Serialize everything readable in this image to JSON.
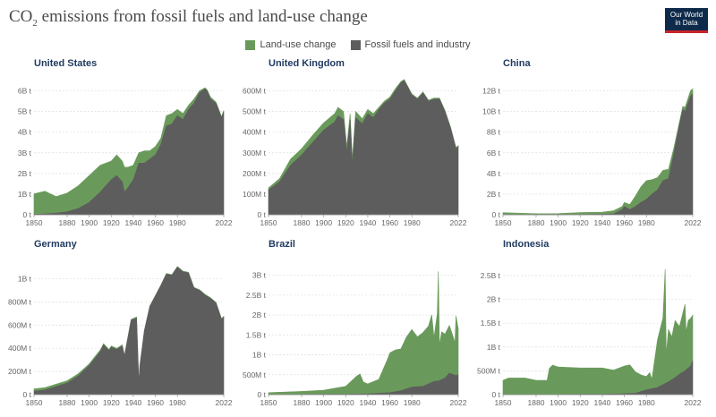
{
  "header": {
    "title_prefix": "CO",
    "title_sub": "2",
    "title_rest": " emissions from fossil fuels and land-use change",
    "logo_line1": "Our World",
    "logo_line2": "in Data"
  },
  "legend": [
    {
      "label": "Land-use change",
      "color": "#6a9a5b"
    },
    {
      "label": "Fossil fuels and industry",
      "color": "#5d5d5d"
    }
  ],
  "colors": {
    "land_use": "#6a9a5b",
    "fossil": "#5d5d5d",
    "title": "#1f3a5f",
    "logo_bg": "#0e2a4a",
    "logo_accent": "#c8242b"
  },
  "chart_data": [
    {
      "type": "area",
      "title": "United States",
      "ylim": [
        0,
        6.5
      ],
      "yticks": [
        0,
        1,
        2,
        3,
        4,
        5,
        6
      ],
      "yticklabels": [
        "0 t",
        "1B t",
        "2B t",
        "3B t",
        "4B t",
        "5B t",
        "6B t"
      ],
      "xlim": [
        1850,
        2022
      ],
      "xticks": [
        1850,
        1880,
        1900,
        1920,
        1940,
        1960,
        1980,
        2022
      ],
      "series": [
        {
          "name": "Fossil fuels and industry",
          "x": [
            1850,
            1860,
            1870,
            1880,
            1890,
            1900,
            1910,
            1920,
            1925,
            1930,
            1932,
            1935,
            1940,
            1945,
            1950,
            1955,
            1960,
            1965,
            1970,
            1975,
            1980,
            1985,
            1990,
            1995,
            2000,
            2005,
            2007,
            2010,
            2015,
            2020,
            2022
          ],
          "values": [
            0.02,
            0.04,
            0.08,
            0.15,
            0.3,
            0.6,
            1.1,
            1.7,
            1.9,
            1.6,
            1.1,
            1.3,
            1.7,
            2.5,
            2.5,
            2.7,
            2.9,
            3.4,
            4.3,
            4.4,
            4.8,
            4.6,
            5.1,
            5.4,
            5.9,
            6.1,
            6.0,
            5.6,
            5.4,
            4.7,
            5.0
          ]
        },
        {
          "name": "Land-use change",
          "x": [
            1850,
            1860,
            1870,
            1880,
            1890,
            1900,
            1910,
            1920,
            1925,
            1930,
            1932,
            1935,
            1940,
            1945,
            1950,
            1955,
            1960,
            1965,
            1970,
            1975,
            1980,
            1985,
            1990,
            1995,
            2000,
            2005,
            2007,
            2010,
            2015,
            2020,
            2022
          ],
          "values": [
            1.0,
            1.1,
            0.8,
            0.9,
            1.1,
            1.3,
            1.3,
            0.9,
            1.0,
            1.0,
            1.2,
            1.0,
            0.7,
            0.5,
            0.6,
            0.4,
            0.4,
            0.3,
            0.5,
            0.5,
            0.3,
            0.3,
            0.2,
            0.2,
            0.1,
            0.05,
            0.05,
            0.1,
            0.05,
            0.05,
            0.05
          ]
        }
      ]
    },
    {
      "type": "area",
      "title": "United Kingdom",
      "ylim": [
        0,
        650
      ],
      "yticks": [
        0,
        100,
        200,
        300,
        400,
        500,
        600
      ],
      "yticklabels": [
        "0 t",
        "100M t",
        "200M t",
        "300M t",
        "400M t",
        "500M t",
        "600M t"
      ],
      "xlim": [
        1850,
        2022
      ],
      "xticks": [
        1850,
        1880,
        1900,
        1920,
        1940,
        1960,
        1980,
        2022
      ],
      "series": [
        {
          "name": "Fossil fuels and industry",
          "x": [
            1850,
            1860,
            1870,
            1880,
            1890,
            1900,
            1910,
            1913,
            1918,
            1921,
            1924,
            1926,
            1929,
            1935,
            1940,
            1945,
            1950,
            1955,
            1960,
            1965,
            1970,
            1973,
            1980,
            1985,
            1990,
            1995,
            2000,
            2005,
            2010,
            2015,
            2020,
            2022
          ],
          "values": [
            120,
            160,
            240,
            290,
            350,
            410,
            450,
            480,
            460,
            300,
            460,
            240,
            470,
            440,
            490,
            470,
            510,
            540,
            560,
            600,
            640,
            650,
            580,
            560,
            590,
            550,
            560,
            560,
            500,
            420,
            320,
            330
          ]
        },
        {
          "name": "Land-use change",
          "x": [
            1850,
            1860,
            1870,
            1880,
            1890,
            1900,
            1910,
            1913,
            1918,
            1921,
            1924,
            1926,
            1929,
            1935,
            1940,
            1945,
            1950,
            1955,
            1960,
            1965,
            1970,
            1973,
            1980,
            1985,
            1990,
            1995,
            2000,
            2005,
            2010,
            2015,
            2020,
            2022
          ],
          "values": [
            10,
            15,
            30,
            30,
            35,
            35,
            40,
            40,
            40,
            30,
            30,
            30,
            30,
            25,
            20,
            20,
            10,
            10,
            10,
            10,
            5,
            5,
            5,
            5,
            5,
            5,
            5,
            5,
            5,
            5,
            5,
            5
          ]
        }
      ]
    },
    {
      "type": "area",
      "title": "China",
      "ylim": [
        0,
        13
      ],
      "yticks": [
        0,
        2,
        4,
        6,
        8,
        10,
        12
      ],
      "yticklabels": [
        "0 t",
        "2B t",
        "4B t",
        "6B t",
        "8B t",
        "10B t",
        "12B t"
      ],
      "xlim": [
        1850,
        2022
      ],
      "xticks": [
        1850,
        1880,
        1900,
        1920,
        1940,
        1960,
        1980,
        2022
      ],
      "series": [
        {
          "name": "Fossil fuels and industry",
          "x": [
            1850,
            1880,
            1900,
            1920,
            1940,
            1950,
            1958,
            1960,
            1965,
            1970,
            1975,
            1980,
            1985,
            1990,
            1995,
            2000,
            2005,
            2010,
            2013,
            2015,
            2020,
            2022
          ],
          "values": [
            0,
            0,
            0.01,
            0.02,
            0.05,
            0.08,
            0.5,
            0.8,
            0.5,
            0.8,
            1.2,
            1.5,
            2.0,
            2.4,
            3.3,
            3.5,
            6.0,
            8.8,
            10.2,
            10.0,
            11.5,
            11.7
          ]
        },
        {
          "name": "Land-use change",
          "x": [
            1850,
            1880,
            1900,
            1920,
            1940,
            1950,
            1958,
            1960,
            1965,
            1970,
            1975,
            1980,
            1985,
            1990,
            1995,
            2000,
            2005,
            2010,
            2013,
            2015,
            2020,
            2022
          ],
          "values": [
            0.2,
            0.1,
            0.1,
            0.2,
            0.2,
            0.3,
            0.3,
            0.4,
            0.5,
            1.0,
            1.5,
            1.8,
            1.4,
            1.2,
            1.0,
            0.9,
            0.5,
            0.2,
            0.3,
            0.4,
            0.5,
            0.5
          ]
        }
      ]
    },
    {
      "type": "area",
      "title": "Germany",
      "ylim": [
        0,
        1150
      ],
      "yticks": [
        0,
        200,
        400,
        600,
        800,
        1000
      ],
      "yticklabels": [
        "0 t",
        "200M t",
        "400M t",
        "600M t",
        "800M t",
        "1B t"
      ],
      "xlim": [
        1850,
        2022
      ],
      "xticks": [
        1850,
        1880,
        1900,
        1920,
        1940,
        1960,
        1980,
        2022
      ],
      "series": [
        {
          "name": "Fossil fuels and industry",
          "x": [
            1850,
            1860,
            1870,
            1880,
            1890,
            1900,
            1910,
            1913,
            1918,
            1920,
            1925,
            1930,
            1932,
            1938,
            1943,
            1945,
            1946,
            1950,
            1955,
            1960,
            1965,
            1970,
            1975,
            1980,
            1985,
            1990,
            1995,
            2000,
            2005,
            2010,
            2015,
            2020,
            2022
          ],
          "values": [
            30,
            40,
            70,
            100,
            160,
            250,
            370,
            430,
            380,
            410,
            390,
            420,
            330,
            640,
            660,
            100,
            250,
            550,
            760,
            850,
            940,
            1040,
            1030,
            1100,
            1060,
            1050,
            920,
            900,
            860,
            830,
            790,
            650,
            670
          ]
        },
        {
          "name": "Land-use change",
          "x": [
            1850,
            1860,
            1870,
            1880,
            1890,
            1900,
            1910,
            1913,
            1918,
            1920,
            1925,
            1930,
            1932,
            1938,
            1943,
            1945,
            1946,
            1950,
            1955,
            1960,
            1965,
            1970,
            1975,
            1980,
            1985,
            1990,
            1995,
            2000,
            2005,
            2010,
            2015,
            2020,
            2022
          ],
          "values": [
            20,
            20,
            20,
            20,
            20,
            15,
            15,
            10,
            10,
            10,
            10,
            10,
            10,
            10,
            10,
            5,
            5,
            5,
            5,
            5,
            5,
            5,
            5,
            5,
            5,
            5,
            5,
            5,
            5,
            5,
            5,
            5,
            5
          ]
        }
      ]
    },
    {
      "type": "area",
      "title": "Brazil",
      "ylim": [
        0,
        3.35
      ],
      "yticks": [
        0,
        0.5,
        1,
        1.5,
        2,
        2.5,
        3
      ],
      "yticklabels": [
        "0 t",
        "500M t",
        "1B t",
        "1.5B t",
        "2B t",
        "2.5B t",
        "3B t"
      ],
      "xlim": [
        1850,
        2022
      ],
      "xticks": [
        1850,
        1880,
        1900,
        1920,
        1940,
        1960,
        1980,
        2022
      ],
      "series": [
        {
          "name": "Fossil fuels and industry",
          "x": [
            1850,
            1880,
            1900,
            1920,
            1940,
            1960,
            1970,
            1980,
            1990,
            2000,
            2005,
            2010,
            2014,
            2015,
            2020,
            2022
          ],
          "values": [
            0,
            0,
            0.01,
            0.01,
            0.02,
            0.05,
            0.1,
            0.19,
            0.21,
            0.33,
            0.35,
            0.42,
            0.54,
            0.53,
            0.48,
            0.5
          ]
        },
        {
          "name": "Land-use change",
          "x": [
            1850,
            1880,
            1900,
            1920,
            1930,
            1933,
            1936,
            1940,
            1950,
            1958,
            1960,
            1965,
            1970,
            1975,
            1980,
            1985,
            1990,
            1995,
            1998,
            2000,
            2003,
            2004,
            2005,
            2007,
            2010,
            2014,
            2018,
            2019,
            2020,
            2022
          ],
          "values": [
            0.05,
            0.08,
            0.1,
            0.2,
            0.45,
            0.5,
            0.3,
            0.25,
            0.35,
            0.85,
            1.0,
            1.05,
            1.05,
            1.3,
            1.45,
            1.25,
            1.35,
            1.45,
            1.7,
            1.1,
            1.7,
            2.75,
            0.9,
            1.2,
            1.1,
            1.2,
            0.9,
            0.8,
            1.5,
            1.15
          ]
        }
      ]
    },
    {
      "type": "area",
      "title": "Indonesia",
      "ylim": [
        0,
        2.8
      ],
      "yticks": [
        0,
        0.5,
        1,
        1.5,
        2,
        2.5
      ],
      "yticklabels": [
        "0 t",
        "500M t",
        "1B t",
        "1.5B t",
        "2B t",
        "2.5B t"
      ],
      "xlim": [
        1850,
        2022
      ],
      "xticks": [
        1850,
        1880,
        1900,
        1920,
        1940,
        1960,
        1980,
        2022
      ],
      "series": [
        {
          "name": "Fossil fuels and industry",
          "x": [
            1850,
            1880,
            1900,
            1920,
            1940,
            1960,
            1970,
            1980,
            1990,
            2000,
            2005,
            2010,
            2015,
            2020,
            2022
          ],
          "values": [
            0,
            0,
            0,
            0.01,
            0.01,
            0.02,
            0.03,
            0.1,
            0.15,
            0.27,
            0.34,
            0.43,
            0.5,
            0.6,
            0.72
          ]
        },
        {
          "name": "Land-use change",
          "x": [
            1850,
            1855,
            1870,
            1880,
            1890,
            1892,
            1895,
            1900,
            1920,
            1940,
            1950,
            1960,
            1965,
            1970,
            1975,
            1980,
            1983,
            1985,
            1990,
            1995,
            1997,
            1998,
            2000,
            2003,
            2006,
            2010,
            2015,
            2016,
            2018,
            2020,
            2022
          ],
          "values": [
            0.3,
            0.35,
            0.35,
            0.3,
            0.3,
            0.55,
            0.62,
            0.58,
            0.55,
            0.55,
            0.5,
            0.58,
            0.6,
            0.45,
            0.35,
            0.28,
            0.35,
            0.2,
            1.0,
            1.4,
            2.4,
            0.6,
            1.1,
            0.9,
            1.2,
            1.0,
            1.4,
            0.8,
            1.0,
            1.0,
            0.95
          ]
        }
      ]
    }
  ]
}
